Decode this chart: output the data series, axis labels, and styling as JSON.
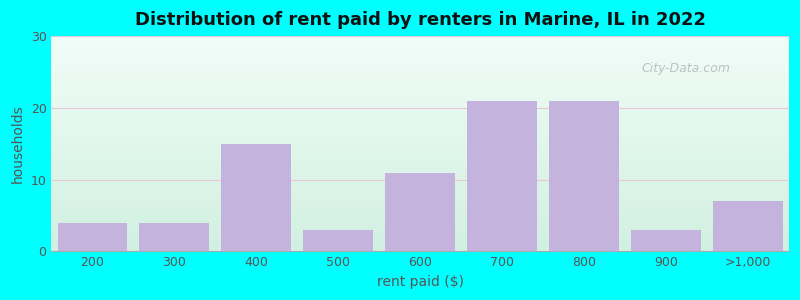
{
  "title": "Distribution of rent paid by renters in Marine, IL in 2022",
  "xlabel": "rent paid ($)",
  "ylabel": "households",
  "categories": [
    "200",
    "300",
    "400",
    "500",
    "600",
    "700",
    "800",
    "900",
    ">1,000"
  ],
  "values": [
    4,
    4,
    15,
    3,
    11,
    21,
    21,
    3,
    7
  ],
  "bar_color": "#c4b3dc",
  "ylim": [
    0,
    30
  ],
  "yticks": [
    0,
    10,
    20,
    30
  ],
  "bg_fig": "#00ffff",
  "bg_plot_top": "#e8f7f2",
  "bg_plot_bottom": "#d8f2e8",
  "grid_color": "#e8c8d8",
  "title_fontsize": 13,
  "axis_label_fontsize": 10,
  "tick_fontsize": 9,
  "watermark_text": "City-Data.com",
  "fig_width": 8.0,
  "fig_height": 3.0,
  "dpi": 100
}
